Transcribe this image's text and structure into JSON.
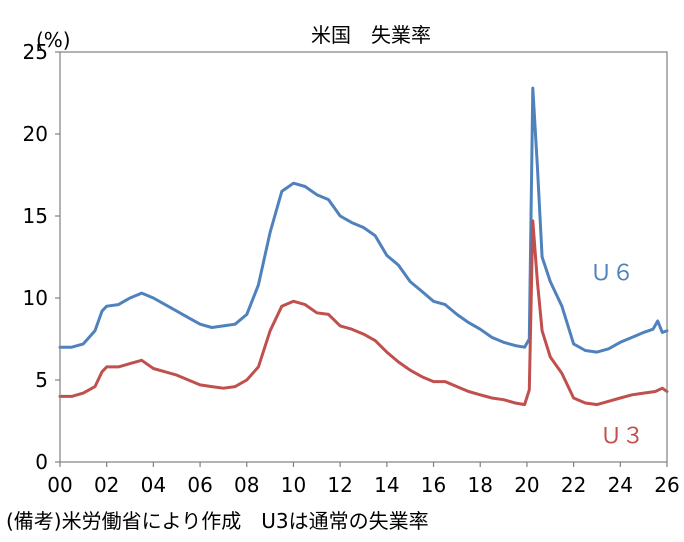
{
  "chart_data": {
    "type": "line",
    "title": "米国　失業率",
    "unit_label": "(%)",
    "ylim": [
      0,
      25
    ],
    "yticks": [
      "0",
      "5",
      "10",
      "15",
      "20",
      "25"
    ],
    "xlim": [
      2000,
      2026
    ],
    "xticks": [
      "00",
      "02",
      "04",
      "06",
      "08",
      "10",
      "12",
      "14",
      "16",
      "18",
      "20",
      "22",
      "24",
      "26"
    ],
    "grid": false,
    "series": [
      {
        "name": "Ｕ６",
        "color": "#4f81bd",
        "points": [
          [
            2000.0,
            7.0
          ],
          [
            2000.5,
            7.0
          ],
          [
            2001.0,
            7.2
          ],
          [
            2001.5,
            8.0
          ],
          [
            2001.8,
            9.2
          ],
          [
            2002.0,
            9.5
          ],
          [
            2002.5,
            9.6
          ],
          [
            2003.0,
            10.0
          ],
          [
            2003.5,
            10.3
          ],
          [
            2004.0,
            10.0
          ],
          [
            2004.5,
            9.6
          ],
          [
            2005.0,
            9.2
          ],
          [
            2005.5,
            8.8
          ],
          [
            2006.0,
            8.4
          ],
          [
            2006.5,
            8.2
          ],
          [
            2007.0,
            8.3
          ],
          [
            2007.5,
            8.4
          ],
          [
            2008.0,
            9.0
          ],
          [
            2008.5,
            10.8
          ],
          [
            2009.0,
            14.0
          ],
          [
            2009.5,
            16.5
          ],
          [
            2010.0,
            17.0
          ],
          [
            2010.5,
            16.8
          ],
          [
            2011.0,
            16.3
          ],
          [
            2011.5,
            16.0
          ],
          [
            2012.0,
            15.0
          ],
          [
            2012.5,
            14.6
          ],
          [
            2013.0,
            14.3
          ],
          [
            2013.5,
            13.8
          ],
          [
            2014.0,
            12.6
          ],
          [
            2014.5,
            12.0
          ],
          [
            2015.0,
            11.0
          ],
          [
            2015.5,
            10.4
          ],
          [
            2016.0,
            9.8
          ],
          [
            2016.5,
            9.6
          ],
          [
            2017.0,
            9.0
          ],
          [
            2017.5,
            8.5
          ],
          [
            2018.0,
            8.1
          ],
          [
            2018.5,
            7.6
          ],
          [
            2019.0,
            7.3
          ],
          [
            2019.5,
            7.1
          ],
          [
            2019.9,
            7.0
          ],
          [
            2020.1,
            7.5
          ],
          [
            2020.25,
            22.8
          ],
          [
            2020.45,
            18.0
          ],
          [
            2020.65,
            12.5
          ],
          [
            2021.0,
            11.0
          ],
          [
            2021.5,
            9.5
          ],
          [
            2022.0,
            7.2
          ],
          [
            2022.5,
            6.8
          ],
          [
            2023.0,
            6.7
          ],
          [
            2023.5,
            6.9
          ],
          [
            2024.0,
            7.3
          ],
          [
            2024.5,
            7.6
          ],
          [
            2025.0,
            7.9
          ],
          [
            2025.4,
            8.1
          ],
          [
            2025.6,
            8.6
          ],
          [
            2025.8,
            7.9
          ],
          [
            2026.0,
            8.0
          ]
        ]
      },
      {
        "name": "Ｕ３",
        "color": "#c0504d",
        "points": [
          [
            2000.0,
            4.0
          ],
          [
            2000.5,
            4.0
          ],
          [
            2001.0,
            4.2
          ],
          [
            2001.5,
            4.6
          ],
          [
            2001.8,
            5.5
          ],
          [
            2002.0,
            5.8
          ],
          [
            2002.5,
            5.8
          ],
          [
            2003.0,
            6.0
          ],
          [
            2003.5,
            6.2
          ],
          [
            2004.0,
            5.7
          ],
          [
            2004.5,
            5.5
          ],
          [
            2005.0,
            5.3
          ],
          [
            2005.5,
            5.0
          ],
          [
            2006.0,
            4.7
          ],
          [
            2006.5,
            4.6
          ],
          [
            2007.0,
            4.5
          ],
          [
            2007.5,
            4.6
          ],
          [
            2008.0,
            5.0
          ],
          [
            2008.5,
            5.8
          ],
          [
            2009.0,
            8.0
          ],
          [
            2009.5,
            9.5
          ],
          [
            2010.0,
            9.8
          ],
          [
            2010.5,
            9.6
          ],
          [
            2011.0,
            9.1
          ],
          [
            2011.5,
            9.0
          ],
          [
            2012.0,
            8.3
          ],
          [
            2012.5,
            8.1
          ],
          [
            2013.0,
            7.8
          ],
          [
            2013.5,
            7.4
          ],
          [
            2014.0,
            6.7
          ],
          [
            2014.5,
            6.1
          ],
          [
            2015.0,
            5.6
          ],
          [
            2015.5,
            5.2
          ],
          [
            2016.0,
            4.9
          ],
          [
            2016.5,
            4.9
          ],
          [
            2017.0,
            4.6
          ],
          [
            2017.5,
            4.3
          ],
          [
            2018.0,
            4.1
          ],
          [
            2018.5,
            3.9
          ],
          [
            2019.0,
            3.8
          ],
          [
            2019.5,
            3.6
          ],
          [
            2019.9,
            3.5
          ],
          [
            2020.1,
            4.4
          ],
          [
            2020.25,
            14.7
          ],
          [
            2020.45,
            11.0
          ],
          [
            2020.65,
            8.0
          ],
          [
            2021.0,
            6.4
          ],
          [
            2021.5,
            5.4
          ],
          [
            2022.0,
            3.9
          ],
          [
            2022.5,
            3.6
          ],
          [
            2023.0,
            3.5
          ],
          [
            2023.5,
            3.7
          ],
          [
            2024.0,
            3.9
          ],
          [
            2024.5,
            4.1
          ],
          [
            2025.0,
            4.2
          ],
          [
            2025.5,
            4.3
          ],
          [
            2025.8,
            4.5
          ],
          [
            2026.0,
            4.3
          ]
        ]
      }
    ]
  },
  "note": "(備考)米労働省により作成　U3は通常の失業率"
}
